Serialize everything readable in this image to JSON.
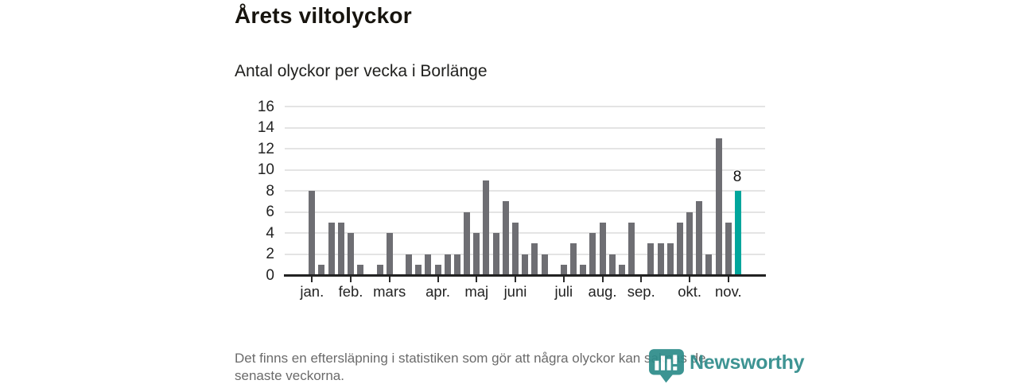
{
  "title": "Årets viltolyckor",
  "subtitle": "Antal olyckor per vecka i Borlänge",
  "footnote": {
    "lines": [
      "Det finns en eftersläpning i statistiken som gör att några olyckor kan saknas de",
      "senaste veckorna."
    ]
  },
  "logo": {
    "name": "Newsworthy",
    "icon": "bar-chart-pin-icon"
  },
  "colors": {
    "ink": "#17140e",
    "bar": "#6e6e73",
    "highlight": "#00a69c",
    "grid": "#e4e4e4",
    "axis": "#222222",
    "muted": "#6b6b6b",
    "logo_teal": "#2e8c8a"
  },
  "chart_data": {
    "type": "bar",
    "title": "Årets viltolyckor",
    "subtitle": "Antal olyckor per vecka i Borlänge",
    "x_unit": "vecka (week of year)",
    "ylabel": "",
    "xlabel": "",
    "ylim": [
      0,
      16
    ],
    "y_ticks": [
      0,
      2,
      4,
      6,
      8,
      10,
      12,
      14,
      16
    ],
    "grid": true,
    "weeks": [
      1,
      2,
      3,
      4,
      5,
      6,
      7,
      8,
      9,
      10,
      11,
      12,
      13,
      14,
      15,
      16,
      17,
      18,
      19,
      20,
      21,
      22,
      23,
      24,
      25,
      26,
      27,
      28,
      29,
      30,
      31,
      32,
      33,
      34,
      35,
      36,
      37,
      38,
      39,
      40,
      41,
      42,
      43,
      44,
      45
    ],
    "values": [
      8,
      1,
      5,
      5,
      4,
      1,
      0,
      1,
      4,
      0,
      2,
      1,
      2,
      1,
      2,
      2,
      6,
      4,
      9,
      4,
      7,
      5,
      2,
      3,
      2,
      0,
      1,
      3,
      1,
      4,
      5,
      2,
      1,
      5,
      0,
      3,
      3,
      3,
      5,
      6,
      7,
      2,
      13,
      5,
      8
    ],
    "highlight_index": 44,
    "highlight_label": "8",
    "month_ticks": [
      {
        "label": "jan.",
        "week": 1
      },
      {
        "label": "feb.",
        "week": 5
      },
      {
        "label": "mars",
        "week": 9
      },
      {
        "label": "apr.",
        "week": 14
      },
      {
        "label": "maj",
        "week": 18
      },
      {
        "label": "juni",
        "week": 22
      },
      {
        "label": "juli",
        "week": 27
      },
      {
        "label": "aug.",
        "week": 31
      },
      {
        "label": "sep.",
        "week": 35
      },
      {
        "label": "okt.",
        "week": 40
      },
      {
        "label": "nov.",
        "week": 44
      }
    ],
    "bar_color": "#6e6e73",
    "highlight_color": "#00a69c"
  }
}
